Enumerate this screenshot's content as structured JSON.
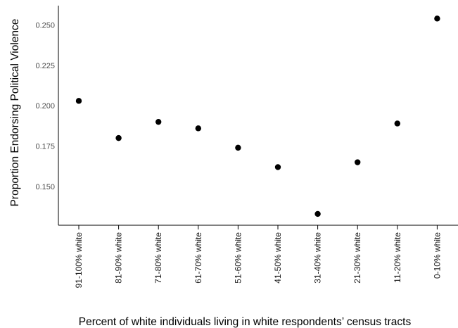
{
  "chart_data": {
    "type": "scatter",
    "xlabel": "Percent of white individuals living in white respondents’ census tracts",
    "ylabel": "Proportion Endorsing Political Violence",
    "categories": [
      "91-100% white",
      "81-90% white",
      "71-80% white",
      "61-70% white",
      "51-60% white",
      "41-50% white",
      "31-40% white",
      "21-30% white",
      "11-20% white",
      "0-10% white"
    ],
    "series": [
      {
        "values": [
          0.203,
          0.18,
          0.19,
          0.186,
          0.174,
          0.162,
          0.133,
          0.165,
          0.189,
          0.254
        ]
      }
    ],
    "yticks": [
      0.15,
      0.175,
      0.2,
      0.225,
      0.25
    ],
    "ytick_labels": [
      "0.150",
      "0.175",
      "0.200",
      "0.225",
      "0.250"
    ],
    "ylim": [
      0.126,
      0.262
    ],
    "grid": false,
    "colors": {
      "point": "#000000",
      "axis": "#000000",
      "tick_text": "#4d4d4d"
    }
  }
}
